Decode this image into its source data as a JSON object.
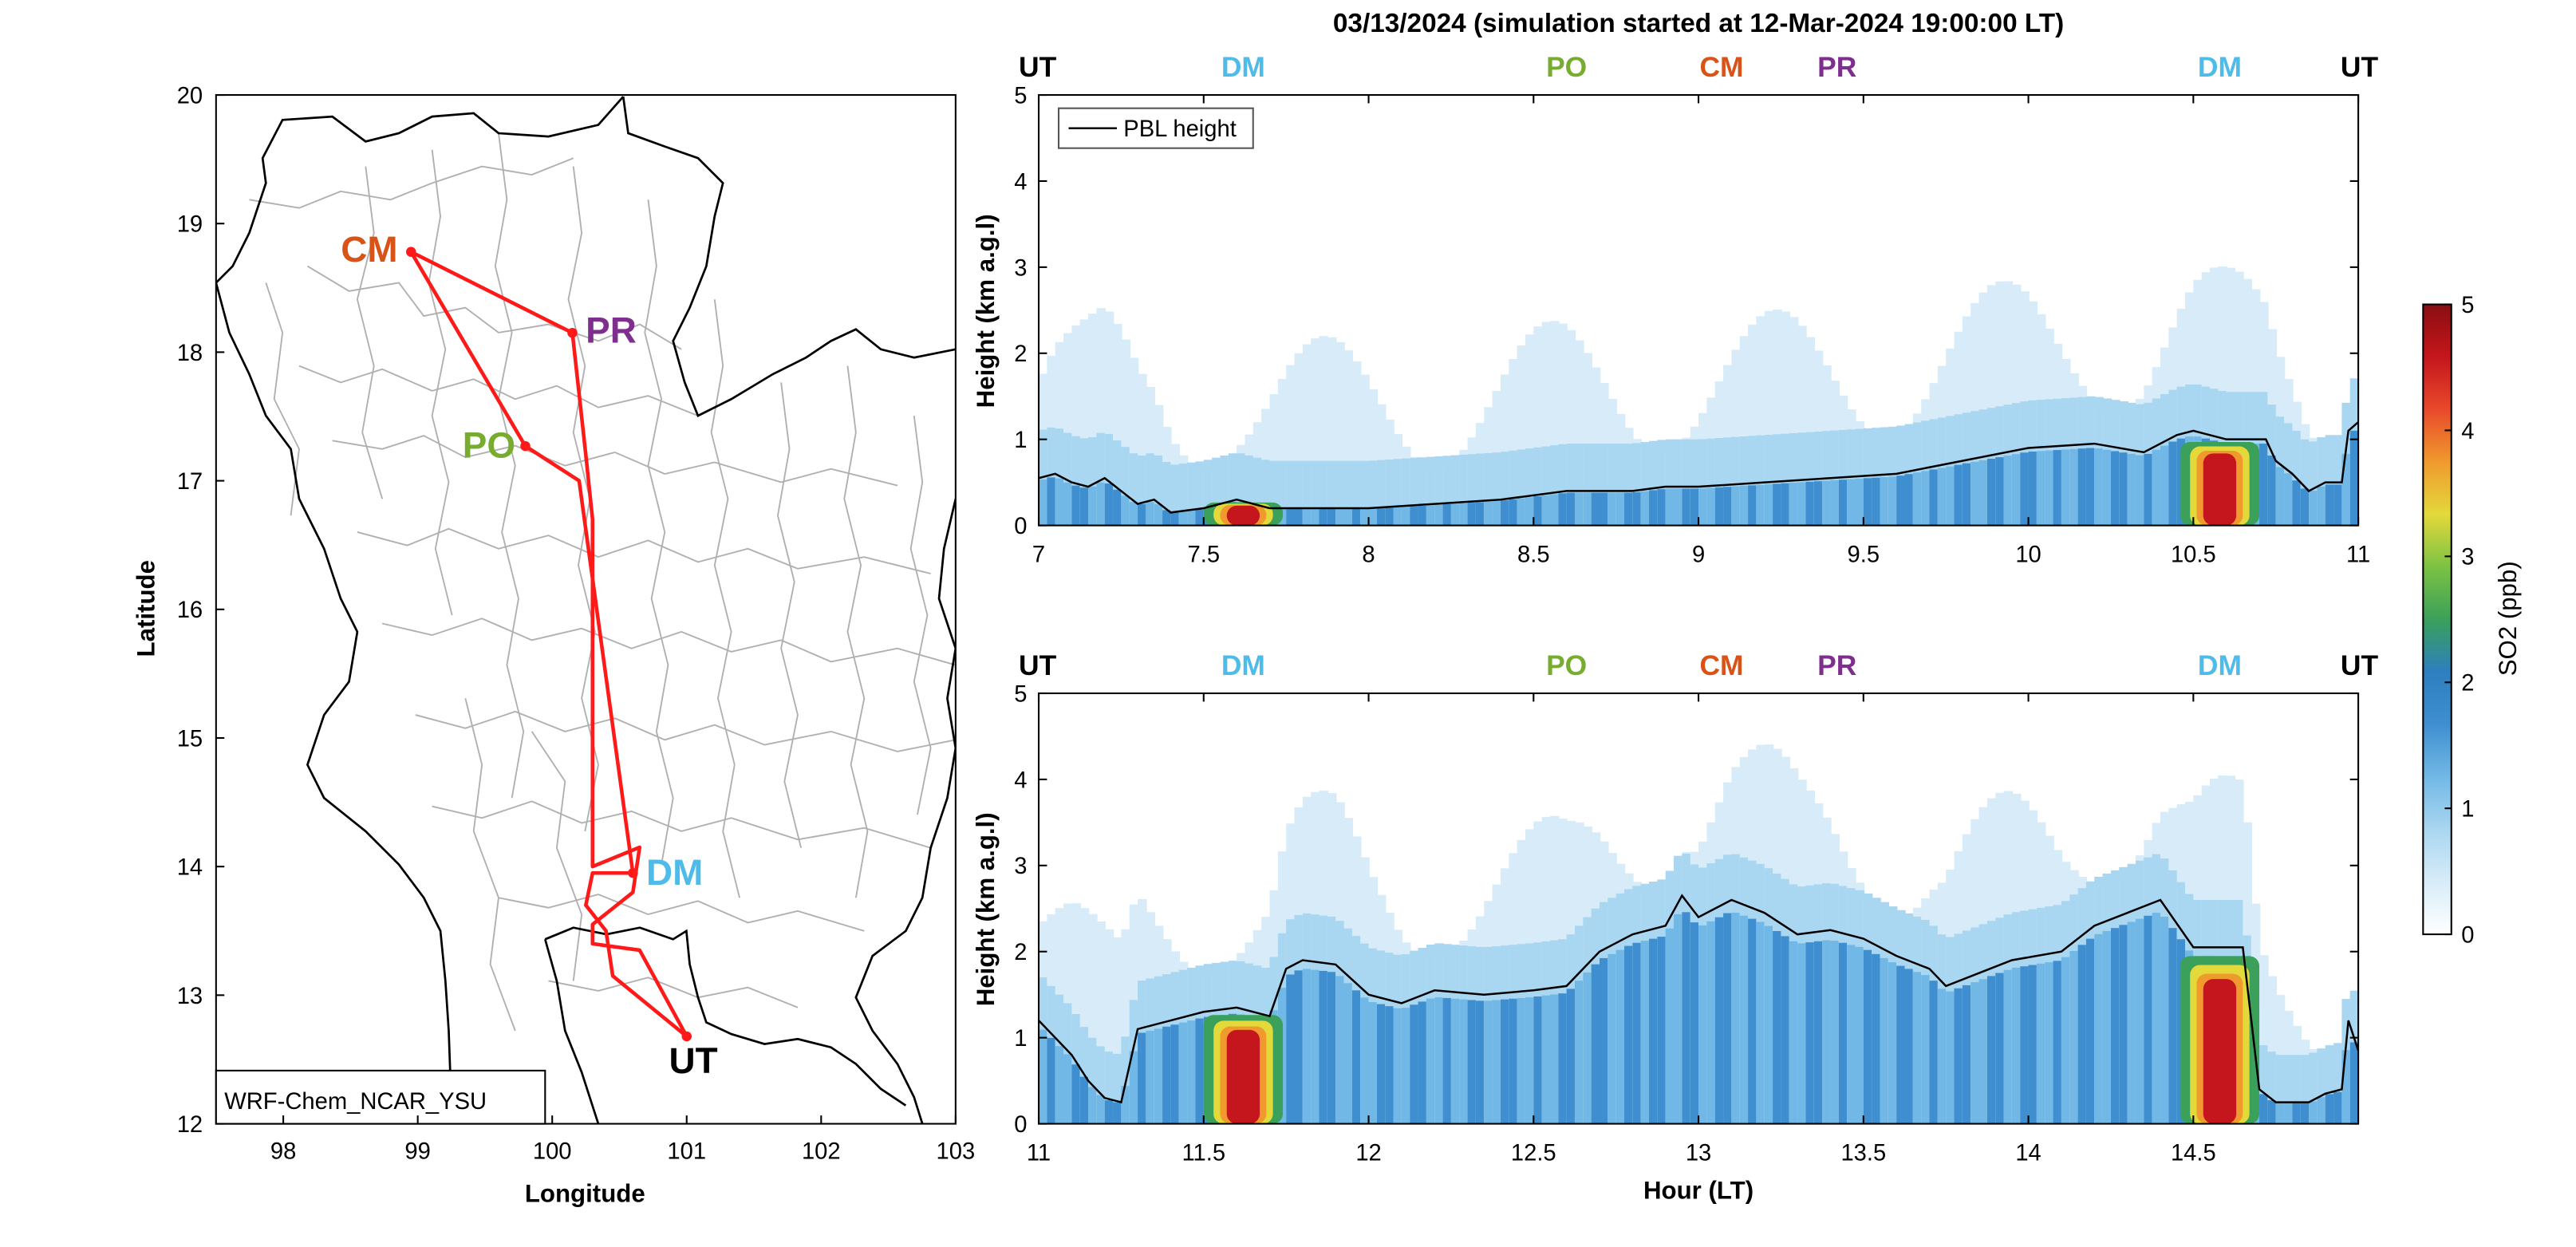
{
  "figure_title": "03/13/2024 (simulation started at 12-Mar-2024 19:00:00 LT)",
  "colors": {
    "route": "#ff1a1a",
    "UT": "#000000",
    "DM": "#4fbbe8",
    "PO": "#77ac30",
    "CM": "#d95319",
    "PR": "#7e2f8e",
    "boundary": "#b0b0b0",
    "coast": "#000000"
  },
  "colormap": [
    "#ffffff",
    "#d7ecf8",
    "#a9d6f0",
    "#72b8e6",
    "#3f8fd0",
    "#2d7fbf",
    "#3aa05a",
    "#7cc243",
    "#e3d93b",
    "#f09a2e",
    "#e8492b",
    "#c4161c",
    "#8a0e12"
  ],
  "chart_data": [
    {
      "type": "map",
      "xlabel": "Longitude",
      "ylabel": "Latitude",
      "xlim": [
        97.5,
        103
      ],
      "ylim": [
        12,
        20
      ],
      "xticks": [
        "98",
        "99",
        "100",
        "101",
        "102",
        "103"
      ],
      "yticks": [
        "12",
        "13",
        "14",
        "15",
        "16",
        "17",
        "18",
        "19",
        "20"
      ],
      "label_box": "WRF-Chem_NCAR_YSU",
      "sites": [
        {
          "code": "CM",
          "lon": 98.95,
          "lat": 18.78
        },
        {
          "code": "PR",
          "lon": 100.15,
          "lat": 18.15
        },
        {
          "code": "PO",
          "lon": 99.8,
          "lat": 17.27
        },
        {
          "code": "DM",
          "lon": 100.6,
          "lat": 13.95
        },
        {
          "code": "UT",
          "lon": 101.0,
          "lat": 12.68
        }
      ],
      "route": [
        [
          101.0,
          12.68
        ],
        [
          100.45,
          13.15
        ],
        [
          100.4,
          13.5
        ],
        [
          100.25,
          13.7
        ],
        [
          100.3,
          13.95
        ],
        [
          100.6,
          13.95
        ],
        [
          100.2,
          17.0
        ],
        [
          99.8,
          17.27
        ],
        [
          98.95,
          18.78
        ],
        [
          100.15,
          18.15
        ],
        [
          100.25,
          17.2
        ],
        [
          100.3,
          16.7
        ],
        [
          100.3,
          14.0
        ],
        [
          100.65,
          14.15
        ],
        [
          100.6,
          13.8
        ],
        [
          100.3,
          13.55
        ],
        [
          100.3,
          13.4
        ],
        [
          100.65,
          13.35
        ],
        [
          101.0,
          12.68
        ]
      ]
    },
    {
      "type": "heatmap",
      "panel": "top",
      "ylabel": "Height (km a.g.l)",
      "xlim": [
        7,
        11
      ],
      "ylim": [
        0,
        5
      ],
      "xticks": [
        "7",
        "7.5",
        "8",
        "8.5",
        "9",
        "9.5",
        "10",
        "10.5",
        "11"
      ],
      "yticks": [
        "0",
        "1",
        "2",
        "3",
        "4",
        "5"
      ],
      "legend": "PBL height",
      "site_labels": [
        {
          "label": "UT",
          "x": 7.0
        },
        {
          "label": "DM",
          "x": 7.62
        },
        {
          "label": "PO",
          "x": 8.6
        },
        {
          "label": "CM",
          "x": 9.07
        },
        {
          "label": "PR",
          "x": 9.42
        },
        {
          "label": "DM",
          "x": 10.58
        },
        {
          "label": "UT",
          "x": 11.0
        }
      ],
      "pbl": [
        [
          7.0,
          0.55
        ],
        [
          7.05,
          0.6
        ],
        [
          7.1,
          0.5
        ],
        [
          7.15,
          0.45
        ],
        [
          7.2,
          0.55
        ],
        [
          7.25,
          0.4
        ],
        [
          7.3,
          0.25
        ],
        [
          7.35,
          0.3
        ],
        [
          7.4,
          0.15
        ],
        [
          7.5,
          0.2
        ],
        [
          7.6,
          0.3
        ],
        [
          7.7,
          0.2
        ],
        [
          7.9,
          0.2
        ],
        [
          8.0,
          0.2
        ],
        [
          8.2,
          0.25
        ],
        [
          8.4,
          0.3
        ],
        [
          8.6,
          0.4
        ],
        [
          8.8,
          0.4
        ],
        [
          8.9,
          0.45
        ],
        [
          9.0,
          0.45
        ],
        [
          9.2,
          0.5
        ],
        [
          9.4,
          0.55
        ],
        [
          9.6,
          0.6
        ],
        [
          9.8,
          0.75
        ],
        [
          10.0,
          0.9
        ],
        [
          10.2,
          0.95
        ],
        [
          10.35,
          0.85
        ],
        [
          10.45,
          1.05
        ],
        [
          10.5,
          1.1
        ],
        [
          10.6,
          1.0
        ],
        [
          10.72,
          1.0
        ],
        [
          10.75,
          0.75
        ],
        [
          10.8,
          0.6
        ],
        [
          10.85,
          0.4
        ],
        [
          10.9,
          0.5
        ],
        [
          10.95,
          0.5
        ],
        [
          10.97,
          1.1
        ],
        [
          11.0,
          1.2
        ]
      ]
    },
    {
      "type": "heatmap",
      "panel": "bottom",
      "xlabel": "Hour (LT)",
      "ylabel": "Height (km a.g.l)",
      "xlim": [
        11,
        15
      ],
      "ylim": [
        0,
        5
      ],
      "xticks": [
        "11",
        "11.5",
        "12",
        "12.5",
        "13",
        "13.5",
        "14",
        "14.5"
      ],
      "yticks": [
        "0",
        "1",
        "2",
        "3",
        "4",
        "5"
      ],
      "site_labels": [
        {
          "label": "UT",
          "x": 11.0
        },
        {
          "label": "DM",
          "x": 11.62
        },
        {
          "label": "PO",
          "x": 12.6
        },
        {
          "label": "CM",
          "x": 13.07
        },
        {
          "label": "PR",
          "x": 13.42
        },
        {
          "label": "DM",
          "x": 14.58
        },
        {
          "label": "UT",
          "x": 15.0
        }
      ],
      "pbl": [
        [
          11.0,
          1.2
        ],
        [
          11.05,
          1.0
        ],
        [
          11.1,
          0.8
        ],
        [
          11.15,
          0.5
        ],
        [
          11.2,
          0.3
        ],
        [
          11.25,
          0.25
        ],
        [
          11.3,
          1.1
        ],
        [
          11.4,
          1.2
        ],
        [
          11.5,
          1.3
        ],
        [
          11.6,
          1.35
        ],
        [
          11.7,
          1.25
        ],
        [
          11.75,
          1.8
        ],
        [
          11.8,
          1.9
        ],
        [
          11.9,
          1.85
        ],
        [
          12.0,
          1.5
        ],
        [
          12.1,
          1.4
        ],
        [
          12.2,
          1.55
        ],
        [
          12.35,
          1.5
        ],
        [
          12.5,
          1.55
        ],
        [
          12.6,
          1.6
        ],
        [
          12.7,
          2.0
        ],
        [
          12.8,
          2.2
        ],
        [
          12.9,
          2.3
        ],
        [
          12.95,
          2.65
        ],
        [
          13.0,
          2.4
        ],
        [
          13.1,
          2.6
        ],
        [
          13.2,
          2.45
        ],
        [
          13.3,
          2.2
        ],
        [
          13.4,
          2.25
        ],
        [
          13.5,
          2.15
        ],
        [
          13.6,
          1.95
        ],
        [
          13.7,
          1.8
        ],
        [
          13.75,
          1.6
        ],
        [
          13.85,
          1.75
        ],
        [
          13.95,
          1.9
        ],
        [
          14.1,
          2.0
        ],
        [
          14.2,
          2.3
        ],
        [
          14.3,
          2.45
        ],
        [
          14.4,
          2.6
        ],
        [
          14.5,
          2.05
        ],
        [
          14.65,
          2.05
        ],
        [
          14.7,
          0.4
        ],
        [
          14.75,
          0.25
        ],
        [
          14.85,
          0.25
        ],
        [
          14.9,
          0.35
        ],
        [
          14.95,
          0.4
        ],
        [
          14.97,
          1.2
        ],
        [
          15.0,
          0.85
        ]
      ]
    }
  ],
  "colorbar": {
    "label": "SO2 (ppb)",
    "ticks": [
      "0",
      "1",
      "2",
      "3",
      "4",
      "5"
    ],
    "range": [
      0,
      5
    ]
  }
}
